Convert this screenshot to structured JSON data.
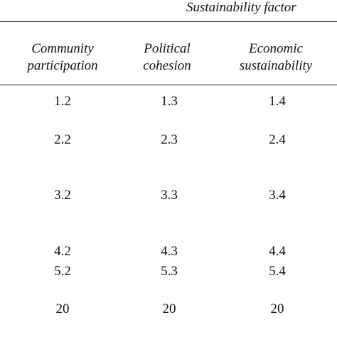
{
  "table": {
    "super_header": "Sustainability factor",
    "headers": [
      {
        "line1": "Community",
        "line2": "participation"
      },
      {
        "line1": "Political",
        "line2": "cohesion"
      },
      {
        "line1": "Economic",
        "line2": "sustainability"
      }
    ],
    "rows": [
      [
        "1.2",
        "1.3",
        "1.4"
      ],
      [
        "2.2",
        "2.3",
        "2.4"
      ],
      [
        "3.2",
        "3.3",
        "3.4"
      ],
      [
        "4.2",
        "4.3",
        "4.4"
      ],
      [
        "5.2",
        "5.3",
        "5.4"
      ],
      [
        "20",
        "20",
        "20"
      ]
    ]
  }
}
